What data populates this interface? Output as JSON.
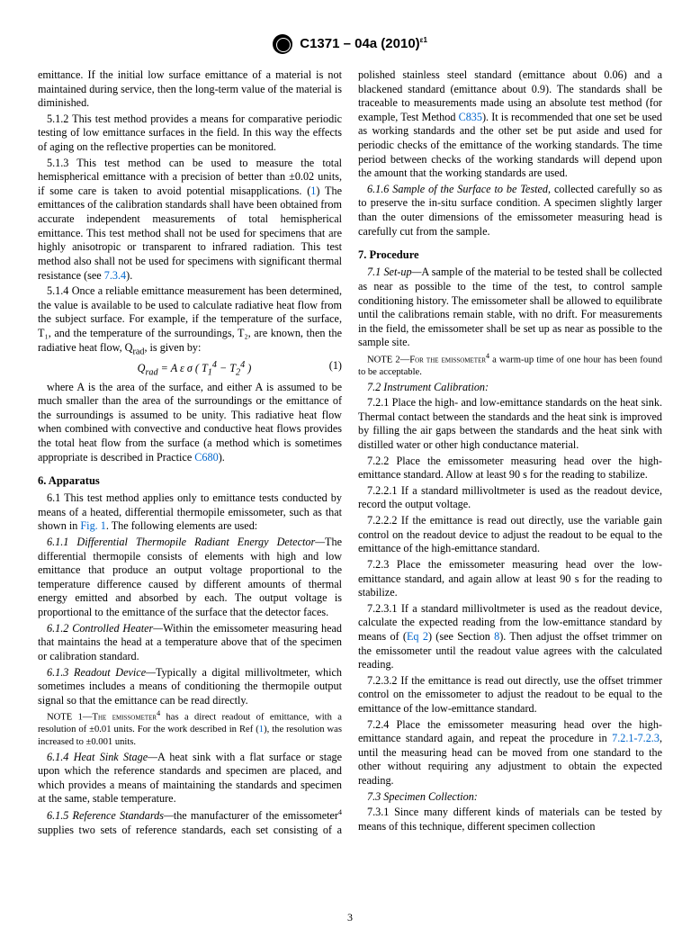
{
  "header": "C1371 – 04a (2010)",
  "header_sup": "ε1",
  "left": {
    "p1": "emittance. If the initial low surface emittance of a material is not maintained during service, then the long-term value of the material is diminished.",
    "p2": "5.1.2 This test method provides a means for comparative periodic testing of low emittance surfaces in the field. In this way the effects of aging on the reflective properties can be monitored.",
    "p3a": "5.1.3 This test method can be used to measure the total hemispherical emittance with a precision of better than ±0.02 units, if some care is taken to avoid potential misapplications. (",
    "p3link": "1",
    "p3b": ") The emittances of the calibration standards shall have been obtained from accurate independent measurements of total hemispherical emittance. This test method shall not be used for specimens that are highly anisotropic or transparent to infrared radiation. This test method also shall not be used for specimens with significant thermal resistance (see ",
    "p3link2": "7.3.4",
    "p3c": ").",
    "p4": "5.1.4 Once a reliable emittance measurement has been determined, the value is available to be used to calculate radiative heat flow from the subject surface. For example, if the temperature of the surface, T₁, and the temperature of the surroundings, T₂, are known, then the radiative heat flow, Q",
    "p4sub": "rad",
    "p4b": ", is given by:",
    "eq": "Q_rad = A ε σ ( T₁⁴ − T₂⁴ )",
    "eqnum": "(1)",
    "p5a": "where A is the area of the surface, and either A is assumed to be much smaller than the area of the surroundings or the emittance of the surroundings is assumed to be unity. This radiative heat flow when combined with convective and conductive heat flows provides the total heat flow from the surface (a method which is sometimes appropriate is described in Practice ",
    "p5link": "C680",
    "p5b": ").",
    "h6": "6. Apparatus",
    "p6a": "6.1 This test method applies only to emittance tests conducted by means of a heated, differential thermopile emissometer, such as that shown in ",
    "p6link": "Fig. 1",
    "p6b": ". The following elements are used:",
    "p611": "6.1.1 Differential Thermopile Radiant Energy Detector—",
    "p611b": "The differential thermopile consists of elements with high and low emittance that produce an output voltage proportional to the temperature difference caused by different amounts of thermal energy emitted and absorbed by each. The output voltage is proportional to the emittance of the surface that the detector faces.",
    "p612": "6.1.2 Controlled Heater—",
    "p612b": "Within the emissometer measuring head that maintains the head at a temperature above that of the specimen or calibration standard.",
    "p613": "6.1.3 Readout Device—",
    "p613b": "Typically a digital millivoltmeter, which sometimes includes a means of conditioning the thermopile output signal so that the emittance can be read directly.",
    "note1a": "NOTE 1—The emissometer",
    "note1sup": "4",
    "note1b": " has a direct readout of emittance, with a resolution of ±0.01 units. For the work described in Ref (",
    "note1link": "1",
    "note1c": "), the resolution was increased to ±0.001 units.",
    "p614": "6.1.4 Heat Sink Stage—",
    "p614b": "A heat sink with a flat surface or stage upon which the reference standards and specimen are placed, and which provides a means of maintaining the standards and specimen at the same, stable temperature."
  },
  "right": {
    "p615": "6.1.5 Reference Standards—",
    "p615b": "the manufacturer of the emissometer",
    "p615sup": "4",
    "p615c": " supplies two sets of reference standards, each set consisting of a polished stainless steel standard (emittance about 0.06) and a blackened standard (emittance about 0.9). The standards shall be traceable to measurements made using an absolute test method (for example, Test Method ",
    "p615link": "C835",
    "p615d": "). It is recommended that one set be used as working standards and the other set be put aside and used for periodic checks of the emittance of the working standards. The time period between checks of the working standards will depend upon the amount that the working standards are used.",
    "p616": "6.1.6 Sample of the Surface to be Tested, ",
    "p616b": "collected carefully so as to preserve the in-situ surface condition. A specimen slightly larger than the outer dimensions of the emissometer measuring head is carefully cut from the sample.",
    "h7": "7. Procedure",
    "p71": "7.1 Set-up—",
    "p71b": "A sample of the material to be tested shall be collected as near as possible to the time of the test, to control sample conditioning history. The emissometer shall be allowed to equilibrate until the calibrations remain stable, with no drift. For measurements in the field, the emissometer shall be set up as near as possible to the sample site.",
    "note2a": "NOTE 2—For the emissometer",
    "note2sup": "4",
    "note2b": " a warm-up time of one hour has been found to be acceptable.",
    "p72": "7.2 Instrument Calibration:",
    "p721": "7.2.1 Place the high- and low-emittance standards on the heat sink. Thermal contact between the standards and the heat sink is improved by filling the air gaps between the standards and the heat sink with distilled water or other high conductance material.",
    "p722": "7.2.2 Place the emissometer measuring head over the high-emittance standard. Allow at least 90 s for the reading to stabilize.",
    "p7221": "7.2.2.1 If a standard millivoltmeter is used as the readout device, record the output voltage.",
    "p7222": "7.2.2.2 If the emittance is read out directly, use the variable gain control on the readout device to adjust the readout to be equal to the emittance of the high-emittance standard.",
    "p723": "7.2.3 Place the emissometer measuring head over the low-emittance standard, and again allow at least 90 s for the reading to stabilize.",
    "p7231a": "7.2.3.1 If a standard millivoltmeter is used as the readout device, calculate the expected reading from the low-emittance standard by means of (",
    "p7231link1": "Eq 2",
    "p7231b": ") (see Section ",
    "p7231link2": "8",
    "p7231c": "). Then adjust the offset trimmer on the emissometer until the readout value agrees with the calculated reading.",
    "p7232": "7.2.3.2 If the emittance is read out directly, use the offset trimmer control on the emissometer to adjust the readout to be equal to the emittance of the low-emittance standard.",
    "p724a": "7.2.4 Place the emissometer measuring head over the high-emittance standard again, and repeat the procedure in ",
    "p724link": "7.2.1-7.2.3",
    "p724b": ", until the measuring head can be moved from one standard to the other without requiring any adjustment to obtain the expected reading.",
    "p73": "7.3 Specimen Collection:",
    "p731": "7.3.1 Since many different kinds of materials can be tested by means of this technique, different specimen collection"
  },
  "pagenum": "3"
}
